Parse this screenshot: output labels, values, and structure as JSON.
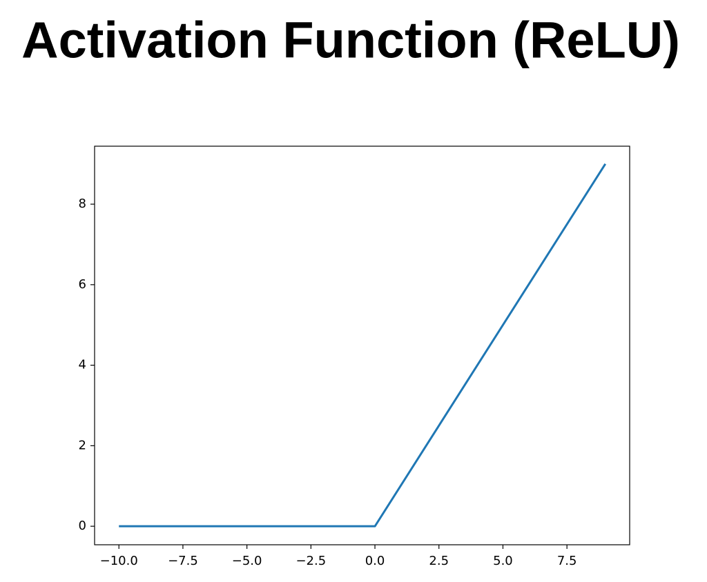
{
  "chart_data": {
    "type": "line",
    "title": "Activation Function (ReLU)",
    "x": [
      -10,
      0,
      9
    ],
    "values": [
      0,
      0,
      9
    ],
    "color": "#1f77b4",
    "xlim": [
      -10.95,
      9.95
    ],
    "xticks": [
      {
        "value": -10,
        "label": "−10.0"
      },
      {
        "value": -7.5,
        "label": "−7.5"
      },
      {
        "value": -5,
        "label": "−5.0"
      },
      {
        "value": -2.5,
        "label": "−2.5"
      },
      {
        "value": 0,
        "label": "0.0"
      },
      2.5,
      {
        "value": 5,
        "label": "5.0"
      },
      7.5
    ],
    "ylim": [
      -0.46,
      9.44
    ],
    "yticks": [
      0,
      2,
      4,
      6,
      8
    ],
    "grid": false
  }
}
